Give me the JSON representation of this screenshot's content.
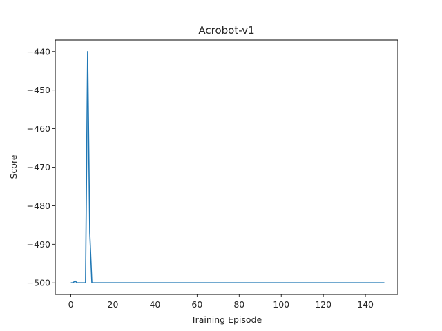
{
  "chart_data": {
    "type": "line",
    "title": "Acrobot-v1",
    "xlabel": "Training Episode",
    "ylabel": "Score",
    "xlim": [
      -7.4,
      155.4
    ],
    "ylim": [
      -503,
      -437
    ],
    "xticks": [
      0,
      20,
      40,
      60,
      80,
      100,
      120,
      140
    ],
    "yticks": [
      -500,
      -490,
      -480,
      -470,
      -460,
      -450,
      -440
    ],
    "xtick_labels": [
      "0",
      "20",
      "40",
      "60",
      "80",
      "100",
      "120",
      "140"
    ],
    "ytick_labels": [
      "−500",
      "−490",
      "−480",
      "−470",
      "−460",
      "−450",
      "−440"
    ],
    "grid": false,
    "series": [
      {
        "color": "#1f77b4",
        "points": [
          [
            0,
            -500
          ],
          [
            1,
            -500
          ],
          [
            2,
            -499.5
          ],
          [
            3,
            -500
          ],
          [
            4,
            -500
          ],
          [
            5,
            -500
          ],
          [
            6,
            -500
          ],
          [
            7,
            -500
          ],
          [
            8,
            -440
          ],
          [
            9,
            -487
          ],
          [
            10,
            -500
          ],
          [
            20,
            -500
          ],
          [
            40,
            -500
          ],
          [
            60,
            -500
          ],
          [
            80,
            -500
          ],
          [
            100,
            -500
          ],
          [
            120,
            -500
          ],
          [
            140,
            -500
          ],
          [
            149,
            -500
          ]
        ]
      }
    ]
  }
}
